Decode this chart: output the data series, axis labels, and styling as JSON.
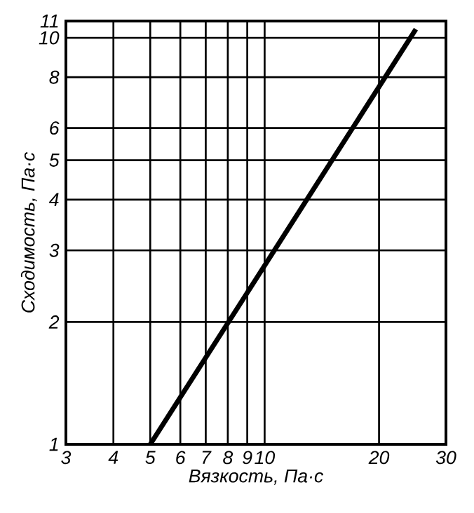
{
  "chart_data": {
    "type": "line",
    "xlabel": "Вязкость, Па·с",
    "ylabel": "Сходимость, Па·с",
    "log": "xy",
    "grid": true,
    "x": [
      5,
      25
    ],
    "series": [
      {
        "color": "#000000",
        "values": [
          1,
          10.5
        ]
      }
    ],
    "xlim": [
      3,
      30
    ],
    "ylim": [
      1,
      11
    ],
    "xticks": [
      3,
      4,
      5,
      6,
      7,
      8,
      9,
      10,
      20,
      30
    ],
    "yticks": [
      1,
      2,
      3,
      4,
      5,
      6,
      8,
      10,
      11
    ],
    "line_style": "solid",
    "marker": "none"
  }
}
